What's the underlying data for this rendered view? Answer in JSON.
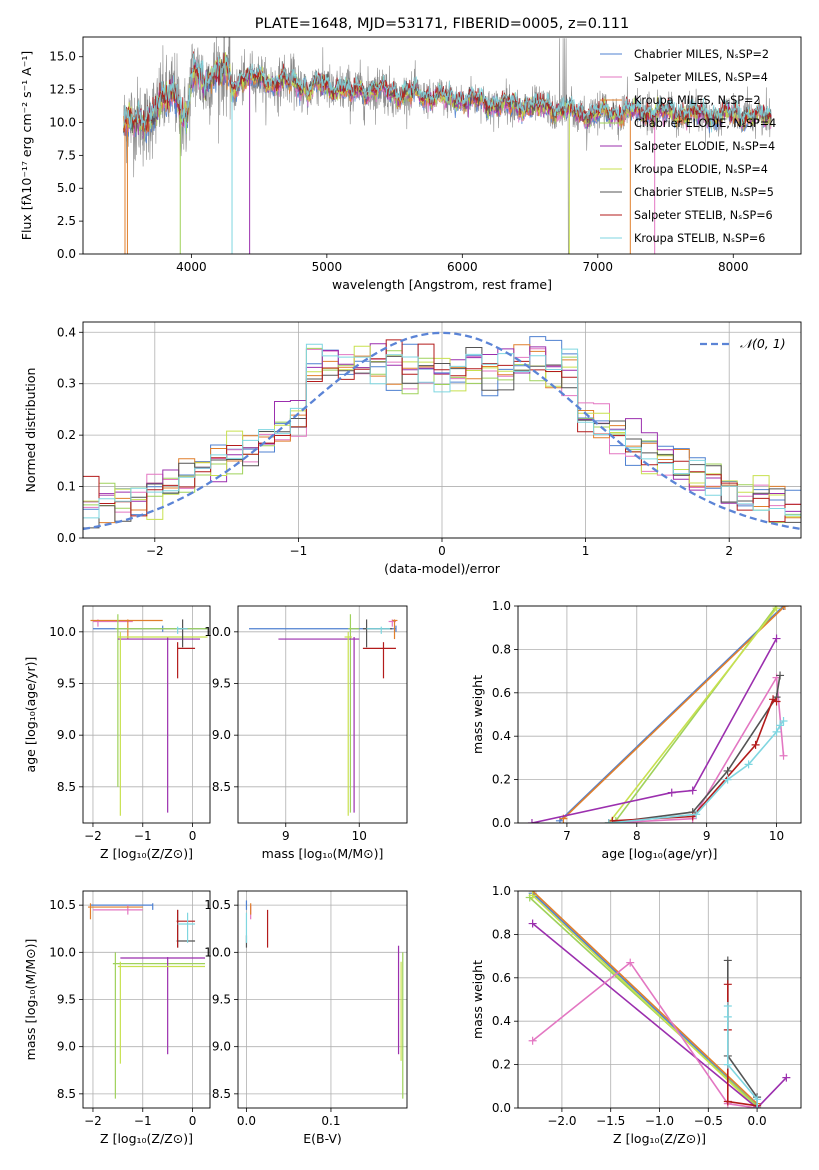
{
  "colors": {
    "chab_miles": "#4f81d0",
    "salp_miles": "#e377c2",
    "krou_miles": "#e07f2c",
    "chab_elodie": "#9fd25b",
    "salp_elodie": "#9b2fae",
    "krou_elodie": "#c8e04f",
    "chab_stelib": "#545454",
    "salp_stelib": "#b31b1b",
    "krou_stelib": "#7fd6e0",
    "normal": "#5b84d6",
    "grid": "#b0b0b0"
  },
  "chart_data": [
    {
      "id": "spectrum",
      "type": "line",
      "title": "PLATE=1648, MJD=53171, FIBERID=0005, z=0.111",
      "xlabel": "wavelength [Angstrom, rest frame]",
      "ylabel": "Flux [fλ10⁻¹⁷ erg cm⁻² s⁻¹ A⁻¹]",
      "xlim": [
        3200,
        8500
      ],
      "ylim": [
        0,
        16.5
      ],
      "xticks": [
        4000,
        5000,
        6000,
        7000,
        8000
      ],
      "yticks": [
        0.0,
        2.5,
        5.0,
        7.5,
        10.0,
        12.5,
        15.0
      ],
      "grid": false,
      "legend_position": "top-right",
      "continuum": {
        "x": [
          3500,
          3700,
          3900,
          4100,
          4300,
          4500,
          4800,
          5100,
          5400,
          5700,
          6000,
          6300,
          6600,
          6900,
          7200,
          7500,
          7800,
          8100,
          8280
        ],
        "y": [
          9.8,
          10.4,
          12.8,
          13.8,
          13.7,
          13.2,
          12.9,
          12.6,
          12.4,
          12.0,
          11.8,
          11.3,
          11.2,
          10.6,
          10.8,
          10.7,
          10.6,
          10.5,
          10.3
        ]
      },
      "legend": [
        "Chabrier MILES, NₛSP=2",
        "Salpeter MILES, NₛSP=4",
        "Kroupa MILES, NₛSP=2",
        "Chabrier ELODIE, NₛSP=4",
        "Salpeter ELODIE, NₛSP=4",
        "Kroupa ELODIE, NₛSP=4",
        "Chabrier STELIB, NₛSP=5",
        "Salpeter STELIB, NₛSP=6",
        "Kroupa STELIB, NₛSP=6"
      ]
    },
    {
      "id": "residuals",
      "type": "histogram",
      "xlabel": "(data-model)/error",
      "ylabel": "Normed distribution",
      "xlim": [
        -2.5,
        2.5
      ],
      "ylim": [
        0,
        0.42
      ],
      "xticks": [
        -2,
        -1,
        0,
        1,
        2
      ],
      "yticks": [
        0.0,
        0.1,
        0.2,
        0.3,
        0.4
      ],
      "grid": true,
      "legend": [
        "𝒩(0, 1)"
      ],
      "legend_position": "top-right"
    },
    {
      "id": "age_Z",
      "type": "errorbar",
      "xlabel": "Z [log₁₀(Z/Z⊙)]",
      "ylabel": "age  [log₁₀(age/yr)]",
      "xlim": [
        -2.2,
        0.35
      ],
      "ylim": [
        8.15,
        10.25
      ],
      "xticks": [
        -2,
        -1,
        0
      ],
      "yticks": [
        8.5,
        9.0,
        9.5,
        10.0
      ],
      "grid": true,
      "points": [
        {
          "m": "chab_miles",
          "x": -0.6,
          "xe": [
            -2.0,
            0.3
          ],
          "y": 10.03,
          "ye": [
            10.0,
            10.06
          ]
        },
        {
          "m": "salp_miles",
          "x": -1.9,
          "xe": [
            -2.0,
            -1.2
          ],
          "y": 10.1,
          "ye": [
            10.05,
            10.12
          ]
        },
        {
          "m": "krou_miles",
          "x": -1.3,
          "xe": [
            -2.05,
            -0.6
          ],
          "y": 10.11,
          "ye": [
            9.93,
            10.12
          ]
        },
        {
          "m": "chab_elodie",
          "x": -1.5,
          "xe": [
            -1.55,
            0.3
          ],
          "y": 10.03,
          "ye": [
            8.5,
            10.17
          ]
        },
        {
          "m": "salp_elodie",
          "x": -0.5,
          "xe": [
            -1.5,
            0.15
          ],
          "y": 9.93,
          "ye": [
            8.25,
            9.95
          ]
        },
        {
          "m": "krou_elodie",
          "x": -1.45,
          "xe": [
            -1.5,
            0.3
          ],
          "y": 9.95,
          "ye": [
            8.22,
            10.0
          ]
        },
        {
          "m": "chab_stelib",
          "x": -0.2,
          "xe": [
            -0.3,
            -0.1
          ],
          "y": 10.03,
          "ye": [
            9.85,
            10.12
          ]
        },
        {
          "m": "salp_stelib",
          "x": -0.3,
          "xe": [
            -0.3,
            0.05
          ],
          "y": 9.84,
          "ye": [
            9.55,
            9.9
          ]
        },
        {
          "m": "krou_stelib",
          "x": -0.3,
          "xe": [
            -0.32,
            -0.1
          ],
          "y": 10.03,
          "ye": [
            9.98,
            10.05
          ]
        }
      ]
    },
    {
      "id": "age_mass",
      "type": "errorbar",
      "xlabel": "mass [log₁₀(M/M⊙)]",
      "ylabel": "",
      "xlim": [
        8.35,
        10.65
      ],
      "ylim": [
        8.15,
        10.25
      ],
      "xticks": [
        9,
        10
      ],
      "yticks": [
        8.5,
        9.0,
        9.5,
        10.0
      ],
      "grid": true,
      "points": [
        {
          "m": "chab_miles",
          "x": 10.5,
          "xe": [
            8.5,
            10.5
          ],
          "y": 10.03,
          "ye": [
            10.0,
            10.06
          ]
        },
        {
          "m": "salp_miles",
          "x": 10.45,
          "xe": [
            10.4,
            10.5
          ],
          "y": 10.1,
          "ye": [
            10.05,
            10.12
          ]
        },
        {
          "m": "krou_miles",
          "x": 10.48,
          "xe": [
            10.45,
            10.52
          ],
          "y": 10.11,
          "ye": [
            9.93,
            10.12
          ]
        },
        {
          "m": "chab_elodie",
          "x": 9.88,
          "xe": [
            9.85,
            10.0
          ],
          "y": 10.03,
          "ye": [
            8.25,
            10.17
          ]
        },
        {
          "m": "salp_elodie",
          "x": 9.93,
          "xe": [
            8.9,
            10.0
          ],
          "y": 9.93,
          "ye": [
            8.25,
            9.95
          ]
        },
        {
          "m": "krou_elodie",
          "x": 9.85,
          "xe": [
            9.8,
            9.9
          ],
          "y": 9.95,
          "ye": [
            8.22,
            10.0
          ]
        },
        {
          "m": "chab_stelib",
          "x": 10.1,
          "xe": [
            10.05,
            10.45
          ],
          "y": 10.03,
          "ye": [
            9.85,
            10.12
          ]
        },
        {
          "m": "salp_stelib",
          "x": 10.33,
          "xe": [
            10.05,
            10.5
          ],
          "y": 9.84,
          "ye": [
            9.55,
            9.9
          ]
        },
        {
          "m": "krou_stelib",
          "x": 10.3,
          "xe": [
            10.1,
            10.42
          ],
          "y": 10.03,
          "ye": [
            9.98,
            10.05
          ]
        }
      ]
    },
    {
      "id": "mw_age",
      "type": "line",
      "xlabel": "age  [log₁₀(age/yr)]",
      "ylabel": "mass weight",
      "xlim": [
        6.3,
        10.35
      ],
      "ylim": [
        0,
        1.0
      ],
      "xticks": [
        7,
        8,
        9,
        10
      ],
      "yticks": [
        0.0,
        0.2,
        0.4,
        0.6,
        0.8,
        1.0
      ],
      "grid": true,
      "series": [
        {
          "m": "chab_miles",
          "x": [
            6.9,
            10.1
          ],
          "y": [
            0.01,
            1.0
          ]
        },
        {
          "m": "krou_miles",
          "x": [
            6.95,
            10.12
          ],
          "y": [
            0.02,
            1.0
          ]
        },
        {
          "m": "chab_elodie",
          "x": [
            7.7,
            10.0
          ],
          "y": [
            0.01,
            1.0
          ]
        },
        {
          "m": "krou_elodie",
          "x": [
            7.6,
            10.0
          ],
          "y": [
            0.0,
            0.99
          ]
        },
        {
          "m": "salp_elodie",
          "x": [
            6.5,
            8.5,
            8.8,
            10.0
          ],
          "y": [
            0.0,
            0.14,
            0.15,
            0.85
          ]
        },
        {
          "m": "salp_miles",
          "x": [
            7.6,
            8.8,
            10.0,
            10.1
          ],
          "y": [
            0.0,
            0.02,
            0.67,
            0.31
          ]
        },
        {
          "m": "chab_stelib",
          "x": [
            7.6,
            8.8,
            9.3,
            10.0,
            10.05
          ],
          "y": [
            0.0,
            0.05,
            0.24,
            0.58,
            0.68
          ]
        },
        {
          "m": "salp_stelib",
          "x": [
            7.65,
            8.8,
            9.7,
            9.95,
            10.0
          ],
          "y": [
            0.01,
            0.03,
            0.36,
            0.57,
            0.56
          ]
        },
        {
          "m": "krou_stelib",
          "x": [
            7.6,
            8.85,
            9.3,
            9.6,
            10.0,
            10.05,
            10.1
          ],
          "y": [
            0.0,
            0.04,
            0.2,
            0.27,
            0.42,
            0.45,
            0.47
          ]
        }
      ]
    },
    {
      "id": "mass_Z",
      "type": "errorbar",
      "xlabel": "Z [log₁₀(Z/Z⊙)]",
      "ylabel": "mass [log₁₀(M/M⊙)]",
      "xlim": [
        -2.2,
        0.35
      ],
      "ylim": [
        8.35,
        10.65
      ],
      "xticks": [
        -2,
        -1,
        0
      ],
      "yticks": [
        8.5,
        9.0,
        9.5,
        10.0,
        10.5
      ],
      "grid": true,
      "points": [
        {
          "m": "chab_miles",
          "x": -0.8,
          "xe": [
            -2.05,
            -0.8
          ],
          "y": 10.5,
          "ye": [
            10.45,
            10.52
          ]
        },
        {
          "m": "salp_miles",
          "x": -1.3,
          "xe": [
            -2.0,
            -1.0
          ],
          "y": 10.45,
          "ye": [
            10.4,
            10.5
          ]
        },
        {
          "m": "krou_miles",
          "x": -2.05,
          "xe": [
            -2.1,
            -1.0
          ],
          "y": 10.48,
          "ye": [
            10.35,
            10.52
          ]
        },
        {
          "m": "chab_elodie",
          "x": -1.55,
          "xe": [
            -1.6,
            0.25
          ],
          "y": 9.88,
          "ye": [
            8.45,
            10.0
          ]
        },
        {
          "m": "salp_elodie",
          "x": -0.5,
          "xe": [
            -1.45,
            0.25
          ],
          "y": 9.94,
          "ye": [
            8.92,
            9.95
          ]
        },
        {
          "m": "krou_elodie",
          "x": -1.45,
          "xe": [
            -1.5,
            0.25
          ],
          "y": 9.85,
          "ye": [
            8.82,
            9.9
          ]
        },
        {
          "m": "chab_stelib",
          "x": -0.3,
          "xe": [
            -0.32,
            0.05
          ],
          "y": 10.12,
          "ye": [
            10.05,
            10.45
          ]
        },
        {
          "m": "salp_stelib",
          "x": -0.3,
          "xe": [
            -0.32,
            0.05
          ],
          "y": 10.33,
          "ye": [
            10.05,
            10.45
          ]
        },
        {
          "m": "krou_stelib",
          "x": -0.1,
          "xe": [
            -0.3,
            0.05
          ],
          "y": 10.3,
          "ye": [
            10.1,
            10.42
          ]
        }
      ]
    },
    {
      "id": "mass_ebv",
      "type": "errorbar",
      "xlabel": "E(B-V)",
      "ylabel": "",
      "xlim": [
        -0.01,
        0.19
      ],
      "ylim": [
        8.35,
        10.65
      ],
      "xticks": [
        0.0,
        0.1
      ],
      "yticks": [
        8.5,
        9.0,
        9.5,
        10.0,
        10.5
      ],
      "grid": true,
      "points": [
        {
          "m": "chab_miles",
          "x": 0.0,
          "xe": [
            0.0,
            0.0
          ],
          "y": 10.5,
          "ye": [
            10.45,
            10.55
          ]
        },
        {
          "m": "salp_miles",
          "x": 0.005,
          "xe": [
            0.005,
            0.005
          ],
          "y": 10.45,
          "ye": [
            10.35,
            10.5
          ]
        },
        {
          "m": "krou_miles",
          "x": 0.005,
          "xe": [
            0.005,
            0.005
          ],
          "y": 10.48,
          "ye": [
            10.4,
            10.52
          ]
        },
        {
          "m": "chab_elodie",
          "x": 0.185,
          "xe": [
            0.185,
            0.185
          ],
          "y": 9.88,
          "ye": [
            8.45,
            10.0
          ]
        },
        {
          "m": "salp_elodie",
          "x": 0.18,
          "xe": [
            0.18,
            0.18
          ],
          "y": 9.94,
          "ye": [
            8.92,
            10.07
          ]
        },
        {
          "m": "krou_elodie",
          "x": 0.183,
          "xe": [
            0.183,
            0.183
          ],
          "y": 9.85,
          "ye": [
            8.85,
            9.9
          ]
        },
        {
          "m": "chab_stelib",
          "x": 0.0,
          "xe": [
            0.0,
            0.0
          ],
          "y": 10.12,
          "ye": [
            10.05,
            10.18
          ]
        },
        {
          "m": "salp_stelib",
          "x": 0.025,
          "xe": [
            0.025,
            0.025
          ],
          "y": 10.33,
          "ye": [
            10.05,
            10.45
          ]
        },
        {
          "m": "krou_stelib",
          "x": 0.0,
          "xe": [
            0.0,
            0.0
          ],
          "y": 10.3,
          "ye": [
            10.1,
            10.42
          ]
        }
      ]
    },
    {
      "id": "mw_Z",
      "type": "line",
      "xlabel": "Z [log₁₀(Z/Z⊙)]",
      "ylabel": "mass weight",
      "xlim": [
        -2.45,
        0.45
      ],
      "ylim": [
        0,
        1.0
      ],
      "xticks": [
        -2.0,
        -1.5,
        -1.0,
        -0.5,
        0.0
      ],
      "yticks": [
        0.0,
        0.2,
        0.4,
        0.6,
        0.8,
        1.0
      ],
      "grid": true,
      "series": [
        {
          "m": "chab_miles",
          "x": [
            -2.3,
            0.0
          ],
          "y": [
            0.99,
            0.01
          ]
        },
        {
          "m": "krou_miles",
          "x": [
            -2.3,
            0.0
          ],
          "y": [
            1.0,
            0.02
          ]
        },
        {
          "m": "chab_elodie",
          "x": [
            -2.33,
            0.0
          ],
          "y": [
            0.97,
            0.01
          ]
        },
        {
          "m": "krou_elodie",
          "x": [
            -2.3,
            0.0
          ],
          "y": [
            0.98,
            0.0
          ]
        },
        {
          "m": "salp_elodie",
          "x": [
            -2.3,
            0.0,
            0.3
          ],
          "y": [
            0.85,
            0.0,
            0.14
          ]
        },
        {
          "m": "salp_miles",
          "x": [
            -2.3,
            -1.3,
            -0.3,
            0.0
          ],
          "y": [
            0.31,
            0.67,
            0.02,
            0.0
          ]
        },
        {
          "m": "chab_stelib",
          "x": [
            -0.3,
            -0.3,
            0.0,
            0.0
          ],
          "y": [
            0.68,
            0.24,
            0.05,
            0.0
          ]
        },
        {
          "m": "salp_stelib",
          "x": [
            -0.3,
            -0.3,
            -0.3,
            0.0
          ],
          "y": [
            0.57,
            0.36,
            0.03,
            0.01
          ]
        },
        {
          "m": "krou_stelib",
          "x": [
            -0.3,
            -0.3,
            -0.3,
            0.0,
            0.0
          ],
          "y": [
            0.47,
            0.42,
            0.2,
            0.04,
            0.0
          ]
        }
      ]
    }
  ]
}
